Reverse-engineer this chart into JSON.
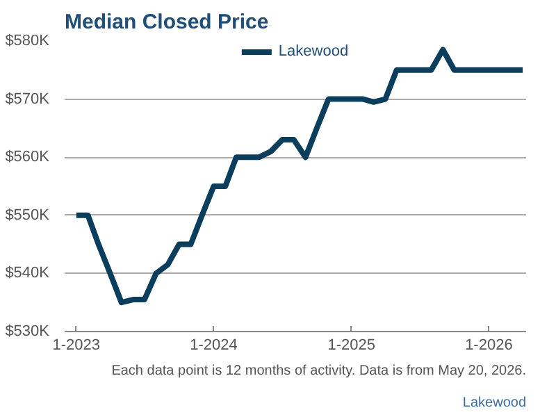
{
  "chart_data": {
    "type": "line",
    "title": "Median Closed Price",
    "x": [
      "2023-01",
      "2023-02",
      "2023-03",
      "2023-04",
      "2023-05",
      "2023-06",
      "2023-07",
      "2023-08",
      "2023-09",
      "2023-10",
      "2023-11",
      "2023-12",
      "2024-01",
      "2024-02",
      "2024-03",
      "2024-04",
      "2024-05",
      "2024-06",
      "2024-07",
      "2024-08",
      "2024-09",
      "2024-10",
      "2024-11",
      "2024-12",
      "2025-01",
      "2025-02",
      "2025-03",
      "2025-04",
      "2025-05",
      "2025-06",
      "2025-07",
      "2025-08",
      "2025-09",
      "2025-10",
      "2025-11",
      "2025-12",
      "2026-01",
      "2026-02",
      "2026-03",
      "2026-04"
    ],
    "series": [
      {
        "name": "Lakewood",
        "color": "#0b3d5c",
        "values": [
          550000,
          550000,
          545000,
          540000,
          535000,
          535500,
          535500,
          540000,
          541500,
          545000,
          545000,
          550000,
          555000,
          555000,
          560000,
          560000,
          560000,
          561000,
          563000,
          563000,
          560000,
          565000,
          570000,
          570000,
          570000,
          570000,
          569500,
          570000,
          575000,
          575000,
          575000,
          575000,
          578500,
          575000,
          575000,
          575000,
          575000,
          575000,
          575000,
          575000
        ]
      }
    ],
    "xlim": [
      "2022-12-01",
      "2026-04-10"
    ],
    "xticks": [
      {
        "value": "2023-01",
        "label": "1-2023"
      },
      {
        "value": "2024-01",
        "label": "1-2024"
      },
      {
        "value": "2025-01",
        "label": "1-2025"
      },
      {
        "value": "2026-01",
        "label": "1-2026"
      }
    ],
    "ylim": [
      530000,
      580000
    ],
    "yticks": [
      {
        "value": 530000,
        "label": "$530K"
      },
      {
        "value": 540000,
        "label": "$540K"
      },
      {
        "value": 550000,
        "label": "$550K"
      },
      {
        "value": 560000,
        "label": "$560K"
      },
      {
        "value": 570000,
        "label": "$570K"
      },
      {
        "value": 580000,
        "label": "$580K"
      }
    ],
    "grid": "y",
    "legend": "top",
    "marker": "none",
    "line_style": "solid",
    "annotations": [
      "Each data point is 12 months of activity. Data is from May 20, 2026.",
      "Lakewood"
    ]
  }
}
